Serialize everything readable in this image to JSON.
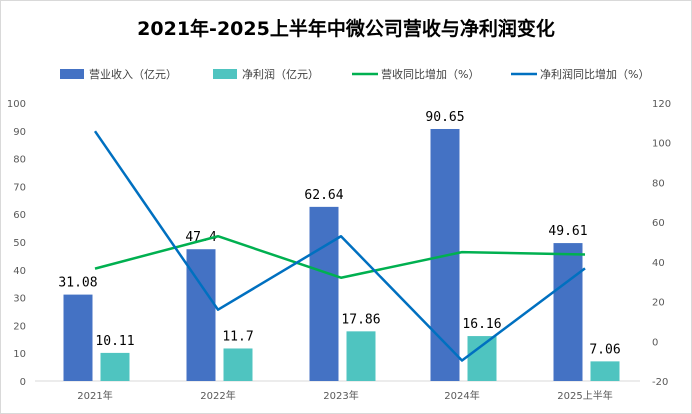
{
  "chart_data": {
    "type": "bar+line",
    "title": "2021年-2025上半年中微公司营收与净利润变化",
    "categories": [
      "2021年",
      "2022年",
      "2023年",
      "2024年",
      "2025上半年"
    ],
    "series": [
      {
        "name": "营业收入（亿元）",
        "type": "bar",
        "axis": "left",
        "color": "#4472C4",
        "values": [
          31.08,
          47.4,
          62.64,
          90.65,
          49.61
        ],
        "labels": [
          "31.08",
          "47.4",
          "62.64",
          "90.65",
          "49.61"
        ]
      },
      {
        "name": "净利润（亿元）",
        "type": "bar",
        "axis": "left",
        "color": "#4FC4C0",
        "values": [
          10.11,
          11.7,
          17.86,
          16.16,
          7.06
        ],
        "labels": [
          "10.11",
          "11.7",
          "17.86",
          "16.16",
          "7.06"
        ]
      },
      {
        "name": "营收同比增加（%）",
        "type": "line",
        "axis": "right",
        "color": "#00B050",
        "values": [
          36.6,
          52.9,
          32.0,
          44.9,
          43.7
        ]
      },
      {
        "name": "净利润同比增加（%）",
        "type": "line",
        "axis": "right",
        "color": "#0070C0",
        "values": [
          105.8,
          15.9,
          52.9,
          -9.7,
          36.7
        ]
      }
    ],
    "left_axis": {
      "min": 0,
      "max": 100,
      "ticks": [
        "0",
        "10",
        "20",
        "30",
        "40",
        "50",
        "60",
        "70",
        "80",
        "90",
        "100"
      ]
    },
    "right_axis": {
      "min": -20,
      "max": 120,
      "ticks": [
        "-20",
        "0",
        "20",
        "40",
        "60",
        "80",
        "100",
        "120"
      ]
    },
    "legend_position": "top",
    "grid": false
  }
}
